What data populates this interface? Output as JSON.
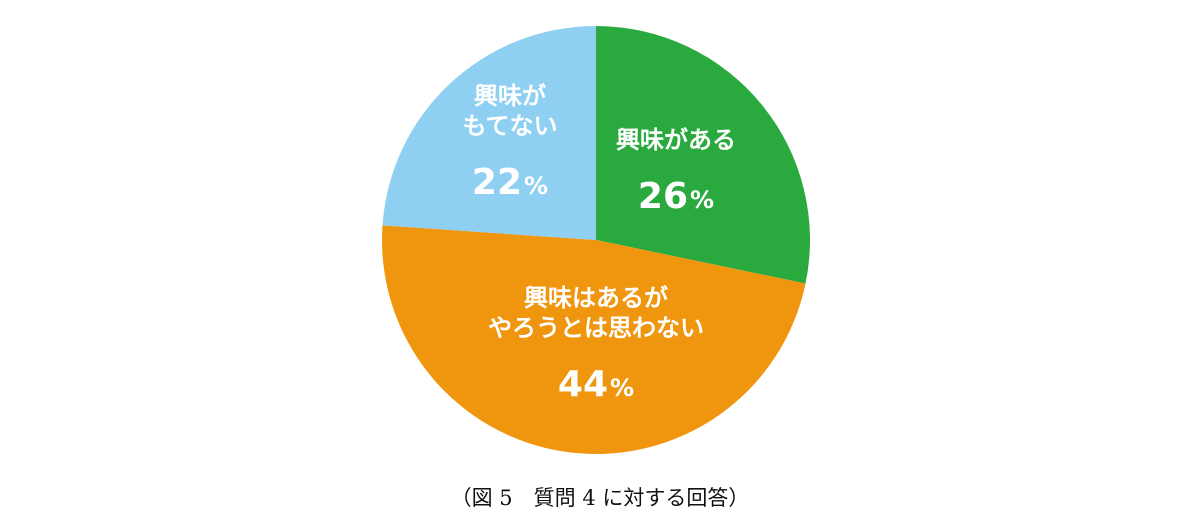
{
  "chart_data": {
    "type": "pie",
    "slices": [
      {
        "label_lines": [
          "興味がある"
        ],
        "value": 26,
        "color": "#2aaa3e"
      },
      {
        "label_lines": [
          "興味はあるが",
          "やろうとは思わない"
        ],
        "value": 44,
        "color": "#f0950e"
      },
      {
        "label_lines": [
          "興味が",
          "もてない"
        ],
        "value": 22,
        "color": "#8ecff2"
      }
    ],
    "value_suffix": "%",
    "start": "top",
    "direction": "clockwise"
  },
  "caption": "（図 5　質問 4 に対する回答）"
}
